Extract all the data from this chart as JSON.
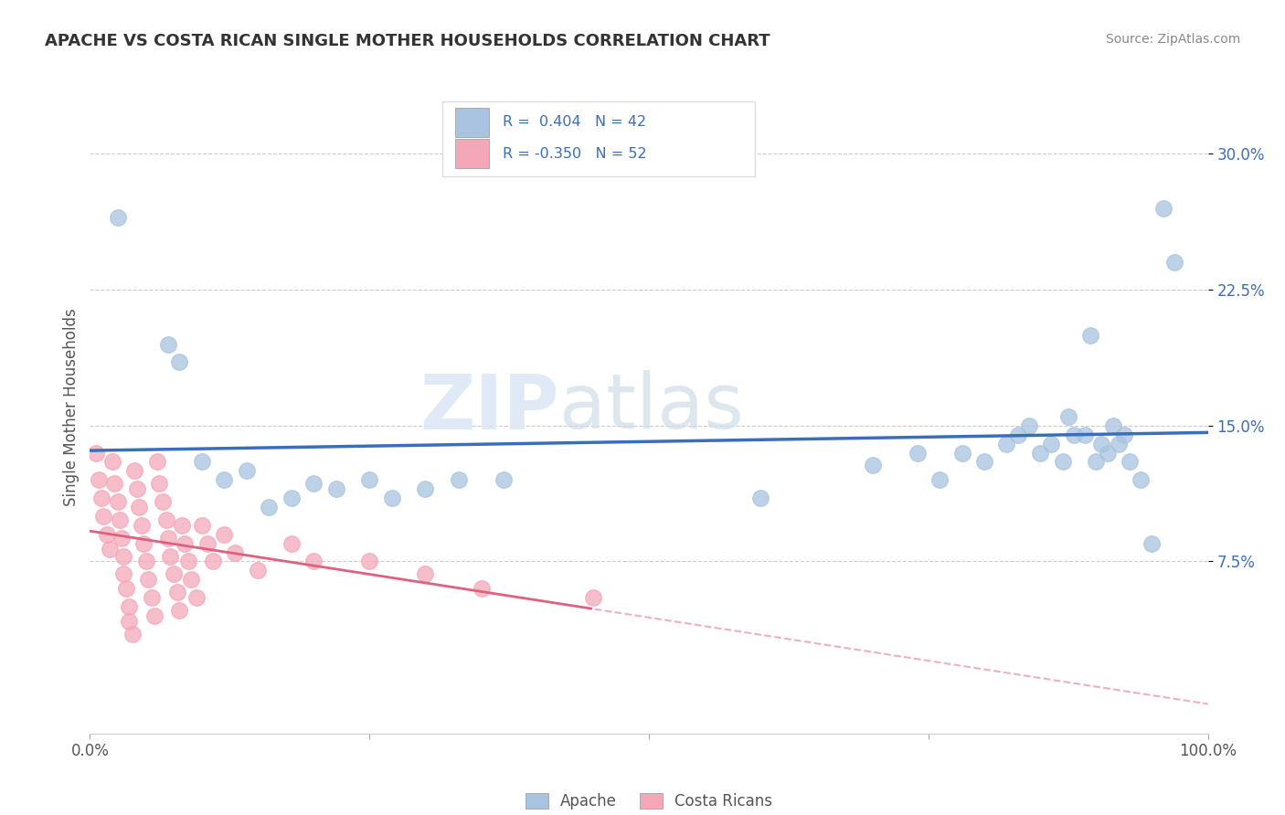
{
  "title": "APACHE VS COSTA RICAN SINGLE MOTHER HOUSEHOLDS CORRELATION CHART",
  "source": "Source: ZipAtlas.com",
  "ylabel": "Single Mother Households",
  "xlim": [
    0,
    1.0
  ],
  "ylim": [
    -0.02,
    0.34
  ],
  "plot_ylim": [
    -0.02,
    0.34
  ],
  "yticks": [
    0.075,
    0.15,
    0.225,
    0.3
  ],
  "ytick_labels": [
    "7.5%",
    "15.0%",
    "22.5%",
    "30.0%"
  ],
  "xticks": [
    0.0,
    0.25,
    0.5,
    0.75,
    1.0
  ],
  "xtick_labels": [
    "0.0%",
    "",
    "",
    "",
    "100.0%"
  ],
  "apache_R": 0.404,
  "apache_N": 42,
  "costa_rican_R": -0.35,
  "costa_rican_N": 52,
  "apache_color": "#a8c4e0",
  "costa_rican_color": "#f4a7b9",
  "apache_line_color": "#3a6ebc",
  "costa_rican_line_color": "#e06080",
  "legend_label_apache": "Apache",
  "legend_label_costa_rican": "Costa Ricans",
  "watermark_zip": "ZIP",
  "watermark_atlas": "atlas",
  "background_color": "#ffffff",
  "apache_points": [
    [
      0.025,
      0.265
    ],
    [
      0.07,
      0.195
    ],
    [
      0.08,
      0.185
    ],
    [
      0.1,
      0.13
    ],
    [
      0.12,
      0.12
    ],
    [
      0.14,
      0.125
    ],
    [
      0.16,
      0.105
    ],
    [
      0.18,
      0.11
    ],
    [
      0.2,
      0.118
    ],
    [
      0.22,
      0.115
    ],
    [
      0.25,
      0.12
    ],
    [
      0.27,
      0.11
    ],
    [
      0.3,
      0.115
    ],
    [
      0.33,
      0.12
    ],
    [
      0.37,
      0.12
    ],
    [
      0.6,
      0.11
    ],
    [
      0.7,
      0.128
    ],
    [
      0.74,
      0.135
    ],
    [
      0.76,
      0.12
    ],
    [
      0.78,
      0.135
    ],
    [
      0.8,
      0.13
    ],
    [
      0.82,
      0.14
    ],
    [
      0.83,
      0.145
    ],
    [
      0.84,
      0.15
    ],
    [
      0.85,
      0.135
    ],
    [
      0.86,
      0.14
    ],
    [
      0.87,
      0.13
    ],
    [
      0.875,
      0.155
    ],
    [
      0.88,
      0.145
    ],
    [
      0.89,
      0.145
    ],
    [
      0.895,
      0.2
    ],
    [
      0.9,
      0.13
    ],
    [
      0.905,
      0.14
    ],
    [
      0.91,
      0.135
    ],
    [
      0.915,
      0.15
    ],
    [
      0.92,
      0.14
    ],
    [
      0.925,
      0.145
    ],
    [
      0.93,
      0.13
    ],
    [
      0.94,
      0.12
    ],
    [
      0.95,
      0.085
    ],
    [
      0.96,
      0.27
    ],
    [
      0.97,
      0.24
    ]
  ],
  "costa_rican_points": [
    [
      0.005,
      0.135
    ],
    [
      0.008,
      0.12
    ],
    [
      0.01,
      0.11
    ],
    [
      0.012,
      0.1
    ],
    [
      0.015,
      0.09
    ],
    [
      0.018,
      0.082
    ],
    [
      0.02,
      0.13
    ],
    [
      0.022,
      0.118
    ],
    [
      0.025,
      0.108
    ],
    [
      0.027,
      0.098
    ],
    [
      0.028,
      0.088
    ],
    [
      0.03,
      0.078
    ],
    [
      0.03,
      0.068
    ],
    [
      0.032,
      0.06
    ],
    [
      0.035,
      0.05
    ],
    [
      0.035,
      0.042
    ],
    [
      0.038,
      0.035
    ],
    [
      0.04,
      0.125
    ],
    [
      0.042,
      0.115
    ],
    [
      0.044,
      0.105
    ],
    [
      0.046,
      0.095
    ],
    [
      0.048,
      0.085
    ],
    [
      0.05,
      0.075
    ],
    [
      0.052,
      0.065
    ],
    [
      0.055,
      0.055
    ],
    [
      0.058,
      0.045
    ],
    [
      0.06,
      0.13
    ],
    [
      0.062,
      0.118
    ],
    [
      0.065,
      0.108
    ],
    [
      0.068,
      0.098
    ],
    [
      0.07,
      0.088
    ],
    [
      0.072,
      0.078
    ],
    [
      0.075,
      0.068
    ],
    [
      0.078,
      0.058
    ],
    [
      0.08,
      0.048
    ],
    [
      0.082,
      0.095
    ],
    [
      0.085,
      0.085
    ],
    [
      0.088,
      0.075
    ],
    [
      0.09,
      0.065
    ],
    [
      0.095,
      0.055
    ],
    [
      0.1,
      0.095
    ],
    [
      0.105,
      0.085
    ],
    [
      0.11,
      0.075
    ],
    [
      0.12,
      0.09
    ],
    [
      0.13,
      0.08
    ],
    [
      0.15,
      0.07
    ],
    [
      0.18,
      0.085
    ],
    [
      0.2,
      0.075
    ],
    [
      0.25,
      0.075
    ],
    [
      0.3,
      0.068
    ],
    [
      0.35,
      0.06
    ],
    [
      0.45,
      0.055
    ]
  ],
  "grid_color": "#cccccc",
  "tick_color": "#555555",
  "title_color": "#333333",
  "source_color": "#888888",
  "legend_text_color": "#3a6ebc",
  "legend_r_color": "#333333"
}
